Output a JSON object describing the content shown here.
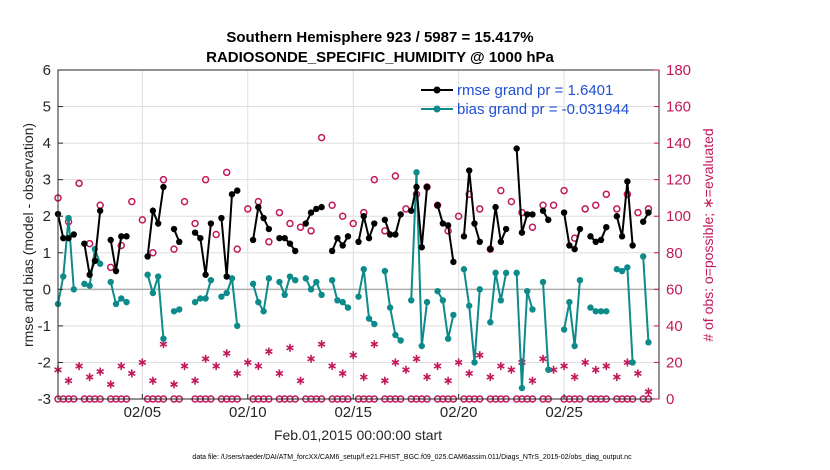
{
  "chart_data": {
    "type": "line",
    "title": "Southern Hemisphere 923 / 5987 = 15.417%",
    "subtitle": "RADIOSONDE_SPECIFIC_HUMIDITY @ 1000 hPa",
    "xlabel": "Feb.01,2015 00:00:00 start",
    "ylabel": "rmse and bias (model - observation)",
    "ylabel_right": "# of obs: o=possible; ∗=evaluated",
    "footnote": "data file: /Users/raeder/DAI/ATM_forcXX/CAM6_setup/f.e21.FHIST_BGC.f09_025.CAM6assim.011/Diags_NTrS_2015-02/obs_diag_output.nc",
    "xlim": [
      1,
      29.5
    ],
    "ylim": [
      -3,
      6
    ],
    "ylim_right": [
      0,
      180
    ],
    "x_ticks": [
      5,
      10,
      15,
      20,
      25
    ],
    "x_tick_labels": [
      "02/05",
      "02/10",
      "02/15",
      "02/20",
      "02/25"
    ],
    "y_ticks": [
      -3,
      -2,
      -1,
      0,
      1,
      2,
      3,
      4,
      5,
      6
    ],
    "y_tick_labels": [
      "-3",
      "-2",
      "-1",
      "0",
      "1",
      "2",
      "3",
      "4",
      "5",
      "6"
    ],
    "y_right_ticks": [
      0,
      20,
      40,
      60,
      80,
      100,
      120,
      140,
      160,
      180
    ],
    "y_right_tick_labels": [
      "0",
      "20",
      "40",
      "60",
      "80",
      "100",
      "120",
      "140",
      "160",
      "180"
    ],
    "grid": true,
    "legend_position": "top-right",
    "series": [
      {
        "name": "rmse grand pr = 1.6401",
        "color": "#000000",
        "marker": "filled-circle",
        "segments": [
          {
            "x": [
              1.0,
              1.25,
              1.5,
              1.75
            ],
            "y": [
              2.06,
              1.4,
              1.4,
              1.5
            ]
          },
          {
            "x": [
              2.25,
              2.5,
              2.75,
              3.0
            ],
            "y": [
              1.25,
              0.4,
              0.78,
              2.15
            ]
          },
          {
            "x": [
              3.5,
              3.75,
              4.0,
              4.25
            ],
            "y": [
              1.35,
              0.5,
              1.45,
              1.45
            ]
          },
          {
            "x": [
              5.25,
              5.5,
              5.75,
              6.0
            ],
            "y": [
              0.9,
              2.15,
              1.8,
              2.8
            ]
          },
          {
            "x": [
              6.5,
              6.75
            ],
            "y": [
              1.65,
              1.3
            ]
          },
          {
            "x": [
              7.5,
              7.75,
              8.0,
              8.25
            ],
            "y": [
              1.55,
              1.4,
              0.4,
              1.8
            ]
          },
          {
            "x": [
              8.75,
              9.0,
              9.25,
              9.5
            ],
            "y": [
              1.95,
              0.35,
              2.6,
              2.7
            ]
          },
          {
            "x": [
              10.25,
              10.5,
              10.75,
              11.0
            ],
            "y": [
              1.35,
              2.25,
              1.95,
              1.65
            ]
          },
          {
            "x": [
              11.5,
              11.75,
              12.0,
              12.25
            ],
            "y": [
              1.4,
              1.4,
              1.25,
              1.05
            ]
          },
          {
            "x": [
              12.75,
              13.0,
              13.25,
              13.5
            ],
            "y": [
              1.8,
              2.1,
              2.2,
              2.25
            ]
          },
          {
            "x": [
              14.0,
              14.25,
              14.5,
              14.75
            ],
            "y": [
              1.05,
              1.4,
              1.2,
              1.45
            ]
          },
          {
            "x": [
              15.25,
              15.5,
              15.75,
              16.0
            ],
            "y": [
              1.3,
              2.0,
              1.4,
              1.8
            ]
          },
          {
            "x": [
              16.5,
              16.75,
              17.0,
              17.25
            ],
            "y": [
              1.9,
              1.5,
              1.5,
              2.05
            ]
          },
          {
            "x": [
              17.75,
              18.0,
              18.25,
              18.5
            ],
            "y": [
              2.15,
              2.8,
              1.15,
              2.8
            ]
          },
          {
            "x": [
              19.0,
              19.25,
              19.5,
              19.75
            ],
            "y": [
              2.3,
              1.8,
              1.75,
              0.75
            ]
          },
          {
            "x": [
              20.25,
              20.5,
              20.75,
              21.0
            ],
            "y": [
              1.45,
              3.25,
              1.8,
              1.3
            ]
          },
          {
            "x": [
              21.5,
              21.75,
              22.0,
              22.25
            ],
            "y": [
              1.1,
              2.25,
              1.3,
              1.65
            ]
          },
          {
            "x": [
              22.75,
              23.0,
              23.25,
              23.5
            ],
            "y": [
              3.85,
              1.55,
              2.05,
              2.05
            ]
          },
          {
            "x": [
              24.0,
              24.25
            ],
            "y": [
              2.15,
              1.9
            ]
          },
          {
            "x": [
              25.0,
              25.25,
              25.5,
              25.75
            ],
            "y": [
              2.1,
              1.2,
              1.1,
              1.65
            ]
          },
          {
            "x": [
              26.25,
              26.5,
              26.75,
              27.0
            ],
            "y": [
              1.45,
              1.3,
              1.35,
              1.7
            ]
          },
          {
            "x": [
              27.5,
              27.75,
              28.0,
              28.25
            ],
            "y": [
              2.0,
              1.45,
              2.95,
              1.2
            ]
          },
          {
            "x": [
              28.75,
              29.0
            ],
            "y": [
              1.85,
              2.1
            ]
          }
        ]
      },
      {
        "name": "bias grand pr = -0.031944",
        "color": "#0d8a8a",
        "marker": "filled-circle",
        "segments": [
          {
            "x": [
              1.0,
              1.25,
              1.5,
              1.75
            ],
            "y": [
              -0.4,
              0.35,
              1.95,
              0.0
            ]
          },
          {
            "x": [
              2.25,
              2.5,
              2.75,
              3.0
            ],
            "y": [
              0.15,
              0.1,
              1.1,
              0.7
            ]
          },
          {
            "x": [
              3.5,
              3.75,
              4.0,
              4.25
            ],
            "y": [
              0.2,
              -0.4,
              -0.25,
              -0.35
            ]
          },
          {
            "x": [
              5.25,
              5.5,
              5.75,
              6.0
            ],
            "y": [
              0.4,
              -0.1,
              0.35,
              -1.35
            ]
          },
          {
            "x": [
              6.5,
              6.75
            ],
            "y": [
              -0.6,
              -0.55
            ]
          },
          {
            "x": [
              7.5,
              7.75,
              8.0,
              8.25
            ],
            "y": [
              -0.35,
              -0.25,
              -0.25,
              0.25
            ]
          },
          {
            "x": [
              8.75,
              9.0,
              9.25,
              9.5
            ],
            "y": [
              -0.2,
              -0.1,
              0.3,
              -1.0
            ]
          },
          {
            "x": [
              10.25,
              10.5,
              10.75,
              11.0
            ],
            "y": [
              0.15,
              -0.35,
              -0.6,
              0.3
            ]
          },
          {
            "x": [
              11.5,
              11.75,
              12.0,
              12.25
            ],
            "y": [
              0.2,
              -0.15,
              0.35,
              0.25
            ]
          },
          {
            "x": [
              12.75,
              13.0,
              13.25,
              13.5
            ],
            "y": [
              0.3,
              0.0,
              0.2,
              -0.15
            ]
          },
          {
            "x": [
              14.0,
              14.25,
              14.5,
              14.75
            ],
            "y": [
              0.25,
              -0.3,
              -0.35,
              -0.5
            ]
          },
          {
            "x": [
              15.25,
              15.5,
              15.75,
              16.0
            ],
            "y": [
              -0.2,
              0.55,
              -0.8,
              -0.95
            ]
          },
          {
            "x": [
              16.5,
              16.75,
              17.0,
              17.25
            ],
            "y": [
              0.5,
              -0.5,
              -1.25,
              -1.4
            ]
          },
          {
            "x": [
              17.75,
              18.0,
              18.25,
              18.5
            ],
            "y": [
              -0.3,
              3.2,
              -1.55,
              -0.35
            ]
          },
          {
            "x": [
              19.0,
              19.25,
              19.5,
              19.75
            ],
            "y": [
              -0.05,
              -0.3,
              -1.35,
              -0.7
            ]
          },
          {
            "x": [
              20.25,
              20.5,
              20.75,
              21.0
            ],
            "y": [
              0.55,
              -0.45,
              -2.0,
              0.0
            ]
          },
          {
            "x": [
              21.5,
              21.75,
              22.0,
              22.25
            ],
            "y": [
              -0.9,
              0.45,
              -0.3,
              0.45
            ]
          },
          {
            "x": [
              22.75,
              23.0,
              23.25,
              23.5
            ],
            "y": [
              0.45,
              -2.7,
              -0.05,
              -0.55
            ]
          },
          {
            "x": [
              24.0,
              24.25
            ],
            "y": [
              0.2,
              -2.2
            ]
          },
          {
            "x": [
              25.0,
              25.25,
              25.5,
              25.75
            ],
            "y": [
              -1.1,
              -0.35,
              -1.55,
              0.25
            ]
          },
          {
            "x": [
              26.25,
              26.5,
              26.75,
              27.0
            ],
            "y": [
              -0.5,
              -0.6,
              -0.6,
              -0.6
            ]
          },
          {
            "x": [
              27.5,
              27.75,
              28.0,
              28.25
            ],
            "y": [
              0.55,
              0.5,
              0.6,
              -2.0
            ]
          },
          {
            "x": [
              28.75,
              29.0
            ],
            "y": [
              0.9,
              -1.45
            ]
          }
        ]
      },
      {
        "name": "# of obs possible",
        "axis": "right",
        "color": "#c2185b",
        "marker": "open-circle",
        "x": [
          1.0,
          1.25,
          1.5,
          1.75,
          2.25,
          2.5,
          2.75,
          3.0,
          3.5,
          3.75,
          4.0,
          4.25,
          5.25,
          5.5,
          5.75,
          6.0,
          6.5,
          6.75,
          7.5,
          7.75,
          8.0,
          8.25,
          8.75,
          9.0,
          9.25,
          9.5,
          10.25,
          10.5,
          10.75,
          11.0,
          11.5,
          11.75,
          12.0,
          12.25,
          12.75,
          13.0,
          13.25,
          13.5,
          14.0,
          14.25,
          14.5,
          14.75,
          15.25,
          15.5,
          15.75,
          16.0,
          16.5,
          16.75,
          17.0,
          17.25,
          17.75,
          18.0,
          18.25,
          18.5,
          19.0,
          19.25,
          19.5,
          19.75,
          20.25,
          20.5,
          20.75,
          21.0,
          21.5,
          21.75,
          22.0,
          22.25,
          22.75,
          23.0,
          23.25,
          23.5,
          24.0,
          24.25,
          25.0,
          25.25,
          25.5,
          25.75,
          26.25,
          26.5,
          26.75,
          27.0,
          27.5,
          27.75,
          28.0,
          28.25,
          28.75,
          29.0
        ],
        "y": [
          0,
          0,
          0,
          0,
          0,
          0,
          0,
          0,
          0,
          0,
          0,
          0,
          0,
          0,
          0,
          0,
          0,
          0,
          0,
          0,
          0,
          0,
          0,
          0,
          0,
          0,
          0,
          0,
          0,
          0,
          0,
          0,
          0,
          0,
          0,
          0,
          0,
          0,
          0,
          0,
          0,
          0,
          0,
          0,
          0,
          0,
          0,
          0,
          0,
          0,
          0,
          0,
          0,
          0,
          0,
          0,
          0,
          0,
          0,
          0,
          0,
          0,
          0,
          0,
          0,
          0,
          0,
          0,
          0,
          0,
          0,
          0,
          0,
          0,
          0,
          0,
          0,
          0,
          0,
          0,
          0,
          0,
          0,
          0,
          0,
          0
        ]
      },
      {
        "name": "# of obs possible (upper)",
        "axis": "right",
        "color": "#c2185b",
        "marker": "open-circle",
        "x": [
          1.0,
          1.5,
          2.0,
          2.5,
          3.0,
          3.5,
          4.0,
          4.5,
          5.0,
          5.5,
          6.0,
          6.5,
          7.0,
          7.5,
          8.0,
          8.5,
          9.0,
          9.5,
          10.0,
          10.5,
          11.0,
          11.5,
          12.0,
          12.5,
          13.0,
          13.5,
          14.0,
          14.5,
          15.0,
          15.5,
          16.0,
          16.5,
          17.0,
          17.5,
          18.0,
          18.5,
          19.0,
          19.5,
          20.0,
          20.5,
          21.0,
          21.5,
          22.0,
          22.5,
          23.0,
          23.5,
          24.0,
          24.5,
          25.0,
          25.5,
          26.0,
          26.5,
          27.0,
          27.5,
          28.0,
          28.5,
          29.0
        ],
        "y": [
          110,
          97,
          118,
          85,
          106,
          72,
          84,
          108,
          98,
          80,
          120,
          82,
          108,
          96,
          120,
          90,
          124,
          82,
          104,
          108,
          86,
          102,
          96,
          94,
          92,
          143,
          106,
          100,
          96,
          102,
          120,
          92,
          122,
          104,
          112,
          116,
          106,
          92,
          100,
          112,
          104,
          82,
          114,
          108,
          102,
          94,
          106,
          106,
          114,
          88,
          104,
          106,
          112,
          104,
          112,
          102,
          104
        ]
      },
      {
        "name": "# of obs evaluated",
        "axis": "right",
        "color": "#c2185b",
        "marker": "asterisk",
        "x": [
          1.0,
          1.5,
          2.0,
          2.5,
          3.0,
          3.5,
          4.0,
          4.5,
          5.0,
          5.5,
          6.0,
          6.5,
          7.0,
          7.5,
          8.0,
          8.5,
          9.0,
          9.5,
          10.0,
          10.5,
          11.0,
          11.5,
          12.0,
          12.5,
          13.0,
          13.5,
          14.0,
          14.5,
          15.0,
          15.5,
          16.0,
          16.5,
          17.0,
          17.5,
          18.0,
          18.5,
          19.0,
          19.5,
          20.0,
          20.5,
          21.0,
          21.5,
          22.0,
          22.5,
          23.0,
          23.5,
          24.0,
          24.5,
          25.0,
          25.5,
          26.0,
          26.5,
          27.0,
          27.5,
          28.0,
          28.5,
          29.0
        ],
        "y": [
          16,
          10,
          18,
          12,
          15,
          8,
          18,
          14,
          20,
          10,
          30,
          8,
          18,
          10,
          22,
          18,
          25,
          14,
          20,
          18,
          26,
          14,
          28,
          10,
          22,
          30,
          18,
          14,
          24,
          12,
          30,
          10,
          20,
          16,
          22,
          12,
          18,
          10,
          20,
          14,
          24,
          12,
          18,
          16,
          20,
          10,
          22,
          16,
          18,
          12,
          20,
          16,
          18,
          12,
          20,
          14,
          4
        ]
      }
    ]
  }
}
